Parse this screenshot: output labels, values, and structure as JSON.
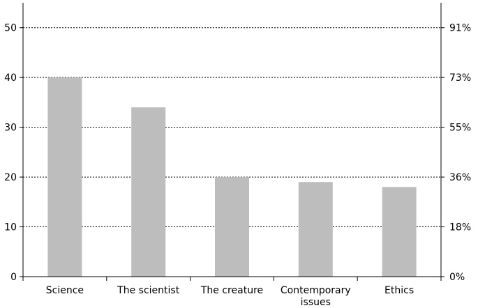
{
  "chart_data": {
    "type": "bar",
    "categories": [
      "Science",
      "The scientist",
      "The creature",
      "Contemporary issues",
      "Ethics"
    ],
    "category_lines": [
      [
        "Science"
      ],
      [
        "The scientist"
      ],
      [
        "The creature"
      ],
      [
        "Contemporary",
        "issues"
      ],
      [
        "Ethics"
      ]
    ],
    "values": [
      40,
      34,
      20,
      19,
      18
    ],
    "title": "",
    "xlabel": "",
    "ylabel": "",
    "ylim": [
      0,
      55
    ],
    "y_ticks": [
      0,
      10,
      20,
      30,
      40,
      50
    ],
    "y2_tick_labels": [
      "0%",
      "18%",
      "36%",
      "55%",
      "73%",
      "91%"
    ],
    "grid": "horizontal dotted",
    "legend": "none",
    "colors": {
      "bar": "#bdbdbd",
      "axis": "#000000",
      "grid": "#000000"
    }
  }
}
